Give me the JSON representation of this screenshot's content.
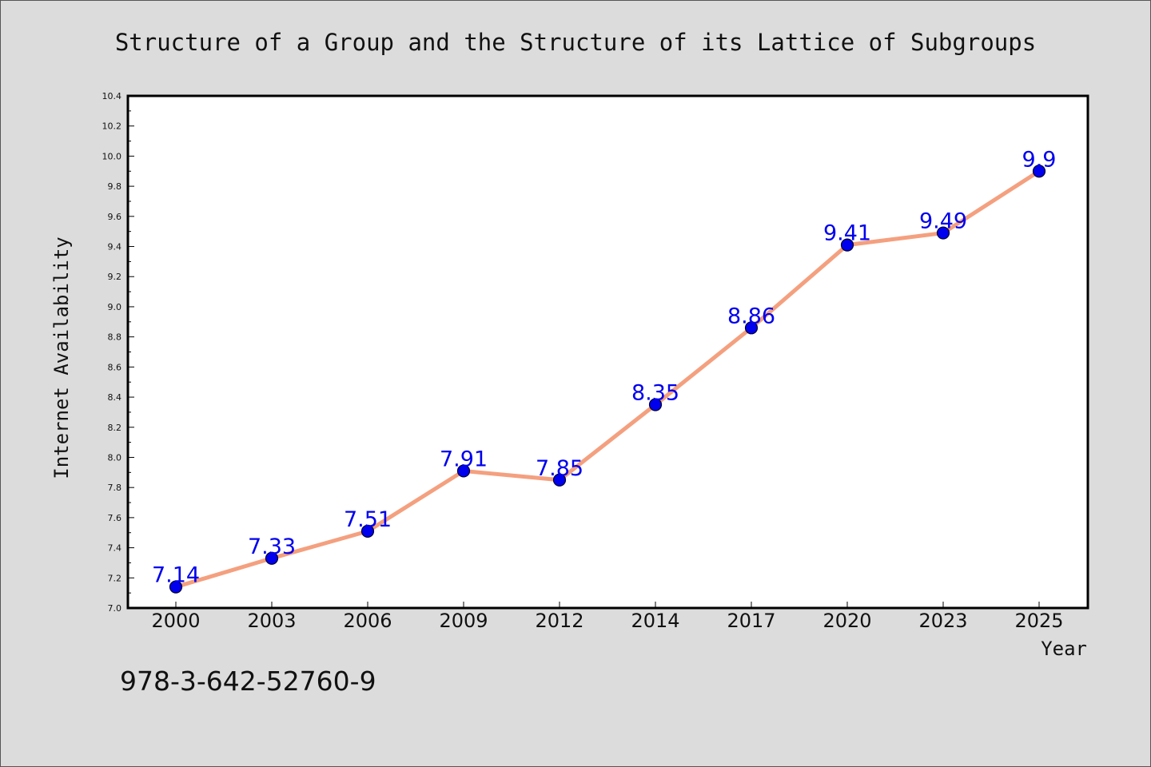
{
  "chart_data": {
    "type": "line",
    "title": "Structure of a Group and the Structure of its Lattice of Subgroups",
    "xlabel": "Year",
    "ylabel": "Internet Availability",
    "categories": [
      "2000",
      "2003",
      "2006",
      "2009",
      "2012",
      "2014",
      "2017",
      "2020",
      "2023",
      "2025"
    ],
    "series": [
      {
        "values": [
          7.14,
          7.33,
          7.51,
          7.91,
          7.85,
          8.35,
          8.86,
          9.41,
          9.49,
          9.9
        ],
        "data_labels": [
          "7.14",
          "7.33",
          "7.51",
          "7.91",
          "7.85",
          "8.35",
          "8.86",
          "9.41",
          "9.49",
          "9.9"
        ]
      }
    ],
    "ylim": [
      7.0,
      10.4
    ],
    "yticks": [
      "7.0",
      "7.2",
      "7.4",
      "7.6",
      "7.8",
      "8.0",
      "8.2",
      "8.4",
      "8.6",
      "8.8",
      "9.0",
      "9.2",
      "9.4",
      "9.6",
      "9.8",
      "10.0",
      "10.2",
      "10.4"
    ],
    "grid": false,
    "colors": {
      "line": "#f4a07f",
      "marker_fill": "#0000ee",
      "marker_edge": "#000033",
      "data_label": "#0000ee",
      "background": "#dcdcdc",
      "plot_background": "#ffffff"
    }
  },
  "footer": {
    "isbn": "978-3-642-52760-9"
  }
}
